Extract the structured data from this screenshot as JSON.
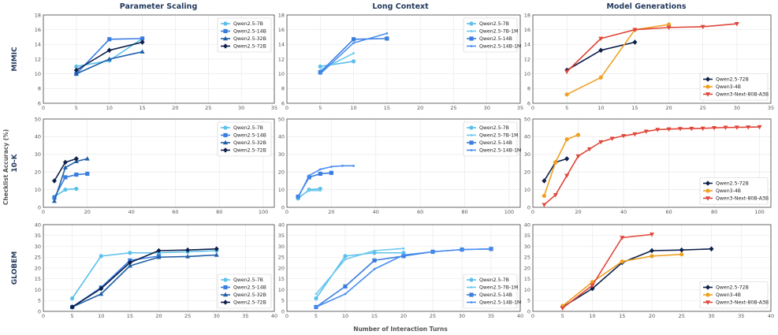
{
  "figure": {
    "col_titles": [
      "Parameter Scaling",
      "Long Context",
      "Model Generations"
    ],
    "row_labels": [
      "MIMIC",
      "10-K",
      "GLOBEM"
    ],
    "ylabel": "Checklist Accuracy (%)",
    "xlabel": "Number of Interaction Turns"
  },
  "colors": {
    "Qwen2.5-7B": "#5bc0eb",
    "Qwen2.5-7B-1M": "#6cc8f0",
    "Qwen2.5-14B": "#3a7de0",
    "Qwen2.5-14B-1M": "#4a8ff0",
    "Qwen2.5-32B": "#1f5fa8",
    "Qwen2.5-72B": "#0d1f4a",
    "Qwen3-4B": "#f0a020",
    "Qwen3-Next-80B-A3B": "#e0463a"
  },
  "chart_data": [
    {
      "type": "line",
      "row": 0,
      "col": 0,
      "title": "Parameter Scaling",
      "row_label": "MIMIC",
      "xlim": [
        0,
        35
      ],
      "ylim": [
        6,
        18
      ],
      "xticks": [
        0,
        5,
        10,
        15,
        20,
        25,
        30,
        35
      ],
      "yticks": [
        6,
        8,
        10,
        12,
        14,
        16,
        18
      ],
      "legend": "top-right",
      "series": [
        {
          "name": "Qwen2.5-7B",
          "marker": "circle",
          "x": [
            5,
            10,
            15
          ],
          "y": [
            11.0,
            11.8,
            14.8
          ]
        },
        {
          "name": "Qwen2.5-14B",
          "marker": "square",
          "x": [
            5,
            10,
            15
          ],
          "y": [
            10.0,
            14.7,
            14.8
          ]
        },
        {
          "name": "Qwen2.5-32B",
          "marker": "triangle",
          "x": [
            5,
            10,
            15
          ],
          "y": [
            10.0,
            12.0,
            13.0
          ]
        },
        {
          "name": "Qwen2.5-72B",
          "marker": "diamond",
          "x": [
            5,
            10,
            15
          ],
          "y": [
            10.5,
            13.2,
            14.3
          ]
        }
      ]
    },
    {
      "type": "line",
      "row": 0,
      "col": 1,
      "title": "Long Context",
      "row_label": "MIMIC",
      "xlim": [
        0,
        35
      ],
      "ylim": [
        6,
        18
      ],
      "xticks": [
        0,
        5,
        10,
        15,
        20,
        25,
        30,
        35
      ],
      "yticks": [
        6,
        8,
        10,
        12,
        14,
        16,
        18
      ],
      "legend": "top-right",
      "series": [
        {
          "name": "Qwen2.5-7B",
          "marker": "circle",
          "x": [
            5,
            10
          ],
          "y": [
            11.0,
            11.7
          ]
        },
        {
          "name": "Qwen2.5-7B-1M",
          "marker": "dot",
          "x": [
            5,
            10
          ],
          "y": [
            10.5,
            12.8
          ]
        },
        {
          "name": "Qwen2.5-14B",
          "marker": "square",
          "x": [
            5,
            10,
            15
          ],
          "y": [
            10.2,
            14.7,
            14.8
          ]
        },
        {
          "name": "Qwen2.5-14B-1M",
          "marker": "dot",
          "x": [
            5,
            10,
            15
          ],
          "y": [
            10.0,
            14.2,
            15.5
          ]
        }
      ]
    },
    {
      "type": "line",
      "row": 0,
      "col": 2,
      "title": "Model Generations",
      "row_label": "MIMIC",
      "xlim": [
        0,
        35
      ],
      "ylim": [
        6,
        18
      ],
      "xticks": [
        0,
        5,
        10,
        15,
        20,
        25,
        30,
        35
      ],
      "yticks": [
        6,
        8,
        10,
        12,
        14,
        16,
        18
      ],
      "legend": "bottom-right",
      "series": [
        {
          "name": "Qwen2.5-72B",
          "marker": "diamond",
          "x": [
            5,
            10,
            15
          ],
          "y": [
            10.5,
            13.2,
            14.3
          ]
        },
        {
          "name": "Qwen3-4B",
          "marker": "circle",
          "x": [
            5,
            10,
            15,
            20
          ],
          "y": [
            7.2,
            9.5,
            16.0,
            16.7
          ]
        },
        {
          "name": "Qwen3-Next-80B-A3B",
          "marker": "triangle-down",
          "x": [
            5,
            10,
            15,
            20,
            25,
            30
          ],
          "y": [
            10.3,
            14.8,
            16.0,
            16.3,
            16.4,
            16.8
          ]
        }
      ]
    },
    {
      "type": "line",
      "row": 1,
      "col": 0,
      "title": "Parameter Scaling",
      "row_label": "10-K",
      "xlim": [
        0,
        105
      ],
      "ylim": [
        0,
        50
      ],
      "xticks": [
        0,
        20,
        40,
        60,
        80,
        100
      ],
      "yticks": [
        0,
        10,
        20,
        30,
        40,
        50
      ],
      "legend": "top-right",
      "series": [
        {
          "name": "Qwen2.5-7B",
          "marker": "circle",
          "x": [
            5,
            10,
            15
          ],
          "y": [
            6.0,
            10.0,
            10.5
          ]
        },
        {
          "name": "Qwen2.5-14B",
          "marker": "square",
          "x": [
            5,
            10,
            15,
            20
          ],
          "y": [
            5.5,
            17.0,
            18.5,
            19.0
          ]
        },
        {
          "name": "Qwen2.5-32B",
          "marker": "triangle",
          "x": [
            5,
            10,
            15,
            20
          ],
          "y": [
            3.5,
            22.5,
            26.0,
            27.5
          ]
        },
        {
          "name": "Qwen2.5-72B",
          "marker": "diamond",
          "x": [
            5,
            10,
            15
          ],
          "y": [
            15.0,
            25.5,
            27.5
          ]
        }
      ]
    },
    {
      "type": "line",
      "row": 1,
      "col": 1,
      "title": "Long Context",
      "row_label": "10-K",
      "xlim": [
        0,
        105
      ],
      "ylim": [
        0,
        50
      ],
      "xticks": [
        0,
        20,
        40,
        60,
        80,
        100
      ],
      "yticks": [
        0,
        10,
        20,
        30,
        40,
        50
      ],
      "legend": "top-right",
      "series": [
        {
          "name": "Qwen2.5-7B",
          "marker": "circle",
          "x": [
            5,
            10,
            15
          ],
          "y": [
            5.0,
            10.0,
            10.5
          ]
        },
        {
          "name": "Qwen2.5-7B-1M",
          "marker": "dot",
          "x": [
            5,
            10,
            15
          ],
          "y": [
            5.5,
            9.5,
            9.5
          ]
        },
        {
          "name": "Qwen2.5-14B",
          "marker": "square",
          "x": [
            5,
            10,
            15,
            20
          ],
          "y": [
            6.0,
            17.0,
            19.0,
            19.5
          ]
        },
        {
          "name": "Qwen2.5-14B-1M",
          "marker": "dot",
          "x": [
            5,
            10,
            15,
            20,
            25,
            30
          ],
          "y": [
            5.5,
            18.0,
            21.5,
            23.0,
            23.5,
            23.5
          ]
        }
      ]
    },
    {
      "type": "line",
      "row": 1,
      "col": 2,
      "title": "Model Generations",
      "row_label": "10-K",
      "xlim": [
        0,
        105
      ],
      "ylim": [
        0,
        50
      ],
      "xticks": [
        0,
        20,
        40,
        60,
        80,
        100
      ],
      "yticks": [
        0,
        10,
        20,
        30,
        40,
        50
      ],
      "legend": "bottom-right",
      "series": [
        {
          "name": "Qwen2.5-72B",
          "marker": "diamond",
          "x": [
            5,
            10,
            15
          ],
          "y": [
            15.0,
            25.5,
            27.5
          ]
        },
        {
          "name": "Qwen3-4B",
          "marker": "circle",
          "x": [
            5,
            10,
            15,
            20
          ],
          "y": [
            6.5,
            25.5,
            38.5,
            41.0
          ]
        },
        {
          "name": "Qwen3-Next-80B-A3B",
          "marker": "triangle-down",
          "x": [
            5,
            10,
            15,
            20,
            25,
            30,
            35,
            40,
            45,
            50,
            55,
            60,
            65,
            70,
            75,
            80,
            85,
            90,
            95,
            100
          ],
          "y": [
            1.5,
            7.0,
            18.0,
            29.0,
            33.0,
            37.0,
            39.0,
            40.5,
            41.5,
            43.0,
            44.0,
            44.3,
            44.5,
            44.6,
            44.7,
            45.0,
            45.2,
            45.3,
            45.4,
            45.5
          ]
        }
      ]
    },
    {
      "type": "line",
      "row": 2,
      "col": 0,
      "title": "Parameter Scaling",
      "row_label": "GLOBEM",
      "xlim": [
        0,
        40
      ],
      "ylim": [
        0,
        40
      ],
      "xticks": [
        0,
        5,
        10,
        15,
        20,
        25,
        30,
        35,
        40
      ],
      "yticks": [
        0,
        5,
        10,
        15,
        20,
        25,
        30,
        35,
        40
      ],
      "legend": "bottom-right",
      "series": [
        {
          "name": "Qwen2.5-7B",
          "marker": "circle",
          "x": [
            5,
            10,
            15,
            20,
            25,
            30
          ],
          "y": [
            6.0,
            25.5,
            27.0,
            27.0,
            27.5,
            28.0
          ]
        },
        {
          "name": "Qwen2.5-14B",
          "marker": "square",
          "x": [
            5,
            10,
            15,
            20
          ],
          "y": [
            2.0,
            11.0,
            23.5,
            25.5
          ]
        },
        {
          "name": "Qwen2.5-32B",
          "marker": "triangle",
          "x": [
            5,
            10,
            15,
            20,
            25,
            30
          ],
          "y": [
            2.0,
            8.0,
            21.0,
            25.0,
            25.3,
            26.0
          ]
        },
        {
          "name": "Qwen2.5-72B",
          "marker": "diamond",
          "x": [
            5,
            10,
            15,
            20,
            25,
            30
          ],
          "y": [
            2.0,
            10.5,
            22.5,
            28.0,
            28.3,
            28.8
          ]
        }
      ]
    },
    {
      "type": "line",
      "row": 2,
      "col": 1,
      "title": "Long Context",
      "row_label": "GLOBEM",
      "xlim": [
        0,
        40
      ],
      "ylim": [
        0,
        40
      ],
      "xticks": [
        0,
        5,
        10,
        15,
        20,
        25,
        30,
        35,
        40
      ],
      "yticks": [
        0,
        5,
        10,
        15,
        20,
        25,
        30,
        35,
        40
      ],
      "legend": "bottom-right",
      "series": [
        {
          "name": "Qwen2.5-7B",
          "marker": "circle",
          "x": [
            5,
            10,
            15,
            20
          ],
          "y": [
            6.0,
            25.5,
            27.0,
            27.0
          ]
        },
        {
          "name": "Qwen2.5-7B-1M",
          "marker": "dot",
          "x": [
            5,
            10,
            15,
            20
          ],
          "y": [
            8.0,
            24.0,
            28.0,
            29.0
          ]
        },
        {
          "name": "Qwen2.5-14B",
          "marker": "square",
          "x": [
            5,
            10,
            15,
            20,
            25,
            30,
            35
          ],
          "y": [
            2.0,
            11.5,
            23.5,
            25.5,
            27.5,
            28.5,
            28.8
          ]
        },
        {
          "name": "Qwen2.5-14B-1M",
          "marker": "dot",
          "x": [
            5,
            10,
            15,
            20,
            25,
            30,
            35
          ],
          "y": [
            2.0,
            8.0,
            19.5,
            26.0,
            27.5,
            28.5,
            28.8
          ]
        }
      ]
    },
    {
      "type": "line",
      "row": 2,
      "col": 2,
      "title": "Model Generations",
      "row_label": "GLOBEM",
      "xlim": [
        0,
        40
      ],
      "ylim": [
        0,
        40
      ],
      "xticks": [
        0,
        5,
        10,
        15,
        20,
        25,
        30,
        35,
        40
      ],
      "yticks": [
        0,
        5,
        10,
        15,
        20,
        25,
        30,
        35,
        40
      ],
      "legend": "bottom-right",
      "series": [
        {
          "name": "Qwen2.5-72B",
          "marker": "diamond",
          "x": [
            5,
            10,
            15,
            20,
            25,
            30
          ],
          "y": [
            2.0,
            10.5,
            22.5,
            28.0,
            28.3,
            28.8
          ]
        },
        {
          "name": "Qwen3-4B",
          "marker": "circle",
          "x": [
            5,
            10,
            15,
            20,
            25
          ],
          "y": [
            2.5,
            13.5,
            23.0,
            25.5,
            26.3
          ]
        },
        {
          "name": "Qwen3-Next-80B-A3B",
          "marker": "triangle-down",
          "x": [
            5,
            10,
            15,
            20
          ],
          "y": [
            1.5,
            12.0,
            34.0,
            35.5
          ]
        }
      ]
    }
  ]
}
